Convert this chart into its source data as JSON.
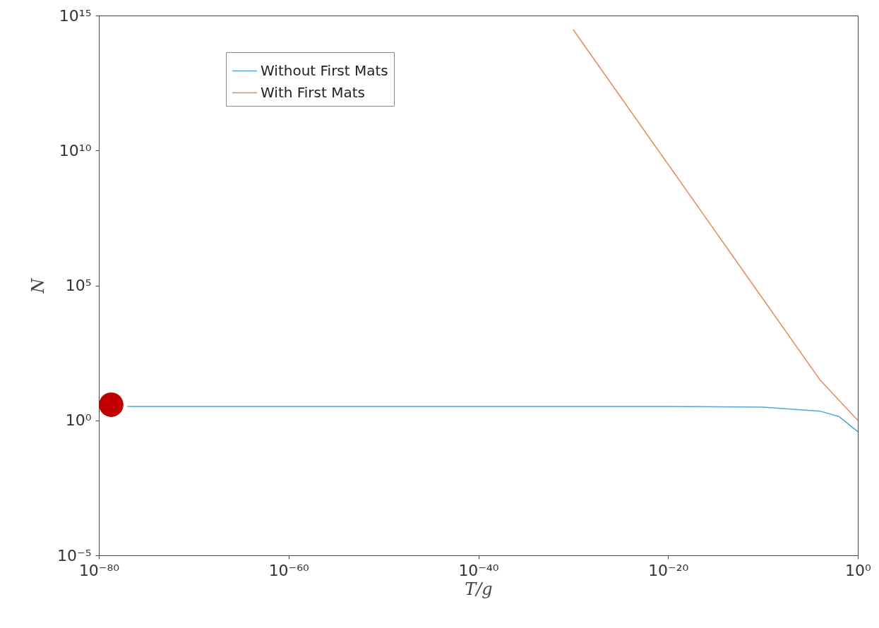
{
  "chart_data": {
    "type": "line",
    "xlabel": "T/g",
    "ylabel": "N",
    "log": "xy",
    "grid": false,
    "legend": "top left",
    "xlim": [
      1e-80,
      1
    ],
    "xticks": [
      {
        "value": 1e-80,
        "label": "10⁻⁸⁰"
      },
      {
        "value": 1e-60,
        "label": "10⁻⁶⁰"
      },
      {
        "value": 1e-40,
        "label": "10⁻⁴⁰"
      },
      {
        "value": 1e-20,
        "label": "10⁻²⁰"
      },
      {
        "value": 1,
        "label": "10⁰"
      }
    ],
    "ylim": [
      1e-05,
      1000000000000000.0
    ],
    "yticks": [
      {
        "value": 1e-05,
        "label": "10⁻⁵"
      },
      {
        "value": 1,
        "label": "10⁰"
      },
      {
        "value": 100000.0,
        "label": "10⁵"
      },
      {
        "value": 10000000000.0,
        "label": "10¹⁰"
      },
      {
        "value": 1000000000000000.0,
        "label": "10¹⁵"
      }
    ],
    "series": [
      {
        "name": "Without First Mats",
        "color": "#4da6e0",
        "marker": "none",
        "x": [
          1e-77,
          1e-60,
          1e-40,
          1e-20,
          1e-10,
          0.0001,
          0.01,
          1
        ],
        "values": [
          3.3,
          3.3,
          3.3,
          3.3,
          3.1,
          2.2,
          1.4,
          0.38
        ]
      },
      {
        "name": "With First Mats",
        "color": "#e8875a",
        "marker": "none",
        "x": [
          1e-30,
          0.0001,
          1
        ],
        "values": [
          300000000000000.0,
          32,
          1
        ]
      },
      {
        "type": "scatter",
        "color": "#c00000",
        "marker": "circle",
        "x": [
          2e-79
        ],
        "values": [
          3.8
        ]
      }
    ]
  }
}
